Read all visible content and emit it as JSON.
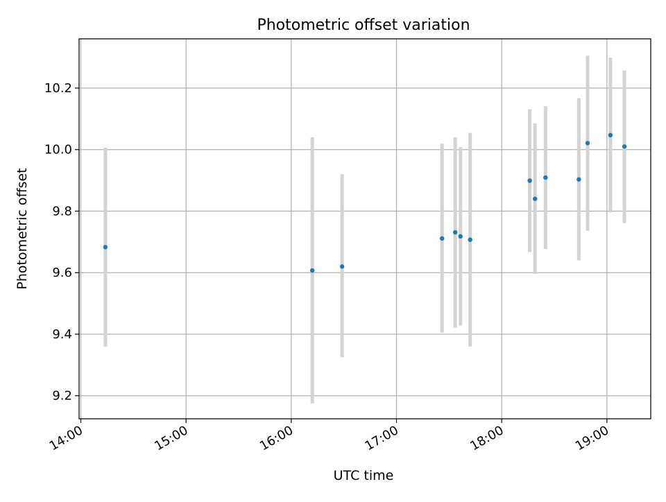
{
  "chart_data": {
    "type": "scatter",
    "title": "Photometric offset variation",
    "xlabel": "UTC time",
    "ylabel": "Photometric offset",
    "xlim": [
      "13:59",
      "19:25"
    ],
    "ylim": [
      9.125,
      10.36
    ],
    "x_ticks": [
      "14:00",
      "15:00",
      "16:00",
      "17:00",
      "18:00",
      "19:00"
    ],
    "y_ticks": [
      9.2,
      9.4,
      9.6,
      9.8,
      10.0,
      10.2
    ],
    "y_tick_labels": [
      "9.2",
      "9.4",
      "9.6",
      "9.8",
      "10.0",
      "10.2"
    ],
    "grid": true,
    "series": [
      {
        "points": [
          {
            "x": "14:14:00",
            "y": 9.683,
            "yerr": [
              9.36,
              10.006
            ]
          },
          {
            "x": "16:12:00",
            "y": 9.607,
            "yerr": [
              9.175,
              10.04
            ]
          },
          {
            "x": "16:29:00",
            "y": 9.62,
            "yerr": [
              9.325,
              9.92
            ]
          },
          {
            "x": "17:26:00",
            "y": 9.711,
            "yerr": [
              9.405,
              10.019
            ]
          },
          {
            "x": "17:33:30",
            "y": 9.731,
            "yerr": [
              9.421,
              10.04
            ]
          },
          {
            "x": "17:36:30",
            "y": 9.718,
            "yerr": [
              9.428,
              10.008
            ]
          },
          {
            "x": "17:42:00",
            "y": 9.707,
            "yerr": [
              9.36,
              10.054
            ]
          },
          {
            "x": "18:16:00",
            "y": 9.899,
            "yerr": [
              9.667,
              10.131
            ]
          },
          {
            "x": "18:19:00",
            "y": 9.84,
            "yerr": [
              9.596,
              10.085
            ]
          },
          {
            "x": "18:25:00",
            "y": 9.909,
            "yerr": [
              9.677,
              10.141
            ]
          },
          {
            "x": "18:44:00",
            "y": 9.903,
            "yerr": [
              9.64,
              10.167
            ]
          },
          {
            "x": "18:49:00",
            "y": 10.021,
            "yerr": [
              9.736,
              10.305
            ]
          },
          {
            "x": "19:02:00",
            "y": 10.047,
            "yerr": [
              9.796,
              10.299
            ]
          },
          {
            "x": "19:10:00",
            "y": 10.01,
            "yerr": [
              9.761,
              10.257
            ]
          }
        ]
      }
    ],
    "colors": {
      "marker": "#1f77b4",
      "errorbar": "#d3d3d3",
      "grid": "#b0b0b0",
      "axes": "#000000"
    }
  }
}
